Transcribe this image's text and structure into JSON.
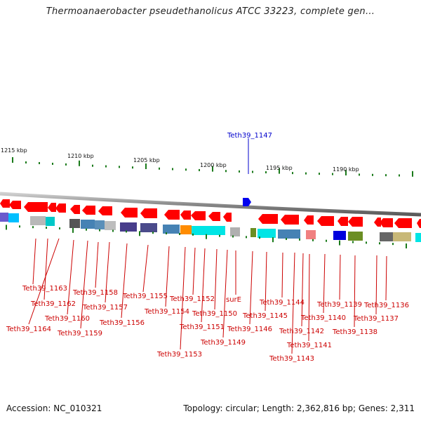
{
  "title": "Thermoanaerobacter pseudethanolicus ATCC 33223, complete gen...",
  "footer": {
    "accession": "Accession: NC_010321",
    "topology": "Topology: circular; Length: 2,362,816 bp; Genes: 2,311"
  },
  "scale_labels": [
    "1215 kbp",
    "1210 kbp",
    "1205 kbp",
    "1200 kbp",
    "1195 kbp",
    "1190 kbp"
  ],
  "selected_gene": "Teth39_1147",
  "gene_labels": [
    "Teth39_1163",
    "Teth39_1162",
    "Teth39_1164",
    "Teth39_1160",
    "Teth39_1159",
    "Teth39_1158",
    "Teth39_1157",
    "Teth39_1156",
    "Teth39_1155",
    "Teth39_1154",
    "Teth39_1153",
    "Teth39_1152",
    "Teth39_1151",
    "Teth39_1150",
    "Teth39_1149",
    "surE",
    "Teth39_1146",
    "Teth39_1145",
    "Teth39_1144",
    "Teth39_1143",
    "Teth39_1142",
    "Teth39_1141",
    "Teth39_1140",
    "Teth39_1139",
    "Teth39_1138",
    "Teth39_1137",
    "Teth39_1136"
  ],
  "colors": {
    "gene_arrow": "#ff0000",
    "selected_arrow": "#0000ee",
    "label_red": "#cc0000",
    "label_blue": "#0000cc",
    "tick_green": "#1a7a1a",
    "backbone": "#8a8a8a"
  }
}
